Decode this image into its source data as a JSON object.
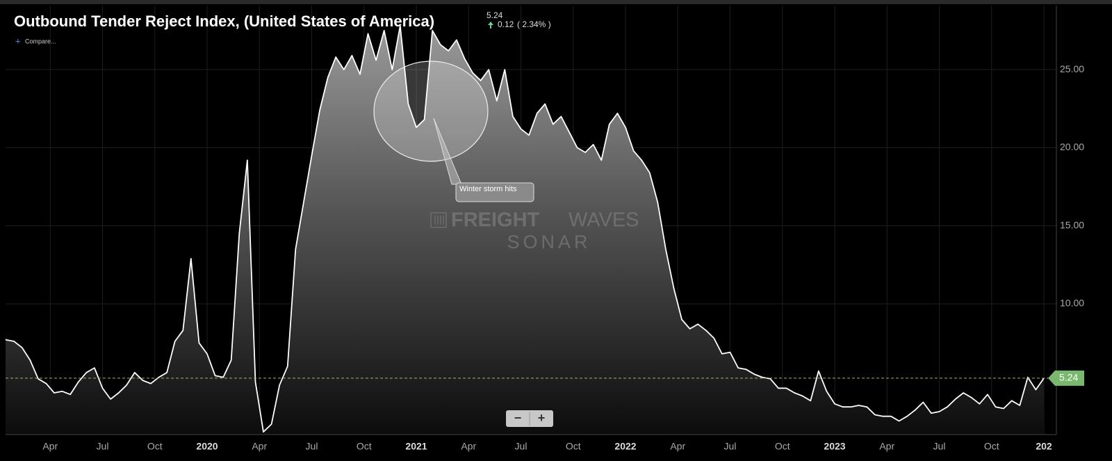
{
  "chart_data": {
    "type": "area",
    "title": "Outbound Tender Reject Index, (United States of America)",
    "last_value": 5.24,
    "change": 0.12,
    "change_percent_label": "( 2.34% )",
    "compare_label": "Compare...",
    "annotation": "Winter storm hits",
    "watermark": {
      "bold": "FREIGHT",
      "light": "WAVES",
      "sub": "SONAR"
    },
    "controls": {
      "zoom_out": "−",
      "zoom_in": "+"
    },
    "color": "#ffffff",
    "xlim": [
      "2019-01",
      "2024-01"
    ],
    "xticks": [
      {
        "value": "2019-04",
        "label": "Apr"
      },
      {
        "value": "2019-07",
        "label": "Jul"
      },
      {
        "value": "2019-10",
        "label": "Oct"
      },
      {
        "value": "2020-01",
        "label": "2020"
      },
      {
        "value": "2020-04",
        "label": "Apr"
      },
      {
        "value": "2020-07",
        "label": "Jul"
      },
      {
        "value": "2020-10",
        "label": "Oct"
      },
      {
        "value": "2021-01",
        "label": "2021"
      },
      {
        "value": "2021-04",
        "label": "Apr"
      },
      {
        "value": "2021-07",
        "label": "Jul"
      },
      {
        "value": "2021-10",
        "label": "Oct"
      },
      {
        "value": "2022-01",
        "label": "2022"
      },
      {
        "value": "2022-04",
        "label": "Apr"
      },
      {
        "value": "2022-07",
        "label": "Jul"
      },
      {
        "value": "2022-10",
        "label": "Oct"
      },
      {
        "value": "2023-01",
        "label": "2023"
      },
      {
        "value": "2023-04",
        "label": "Apr"
      },
      {
        "value": "2023-07",
        "label": "Jul"
      },
      {
        "value": "2023-10",
        "label": "Oct"
      },
      {
        "value": "2024-01",
        "label": "202"
      }
    ],
    "ylim": [
      1.63,
      29.1
    ],
    "yticks": [
      {
        "value": 10,
        "label": "10.00"
      },
      {
        "value": 15,
        "label": "15.00"
      },
      {
        "value": 20,
        "label": "20.00"
      },
      {
        "value": 25,
        "label": "25.00"
      }
    ],
    "grid": true,
    "values": [
      8.2,
      7.7,
      7.6,
      7.2,
      6.4,
      5.2,
      4.9,
      4.3,
      4.4,
      4.2,
      5.0,
      5.6,
      5.9,
      4.6,
      3.9,
      4.3,
      4.8,
      5.6,
      5.1,
      4.9,
      5.3,
      5.6,
      7.6,
      8.3,
      12.9,
      7.5,
      6.8,
      5.4,
      5.3,
      6.4,
      14.5,
      19.2,
      5.0,
      1.8,
      2.3,
      4.8,
      6.0,
      13.5,
      16.5,
      19.5,
      22.4,
      24.5,
      25.8,
      25.0,
      25.9,
      24.7,
      27.3,
      25.6,
      27.5,
      25.0,
      27.8,
      22.8,
      21.3,
      21.8,
      27.5,
      26.6,
      26.2,
      26.9,
      25.7,
      24.8,
      24.3,
      25.0,
      23.0,
      25.0,
      22.0,
      21.2,
      20.8,
      22.2,
      22.8,
      21.5,
      22.0,
      21.0,
      20.0,
      19.7,
      20.2,
      19.2,
      21.5,
      22.2,
      21.3,
      19.8,
      19.2,
      18.4,
      16.5,
      13.5,
      11.0,
      9.0,
      8.4,
      8.7,
      8.3,
      7.8,
      6.8,
      6.9,
      5.9,
      5.8,
      5.5,
      5.3,
      5.2,
      4.6,
      4.6,
      4.3,
      4.1,
      3.8,
      5.7,
      4.4,
      3.6,
      3.4,
      3.4,
      3.5,
      3.4,
      2.9,
      2.8,
      2.8,
      2.5,
      2.8,
      3.2,
      3.7,
      3.0,
      3.1,
      3.4,
      3.9,
      4.3,
      4.0,
      3.6,
      4.2,
      3.4,
      3.3,
      3.8,
      3.5,
      5.3,
      4.5,
      5.24
    ]
  }
}
